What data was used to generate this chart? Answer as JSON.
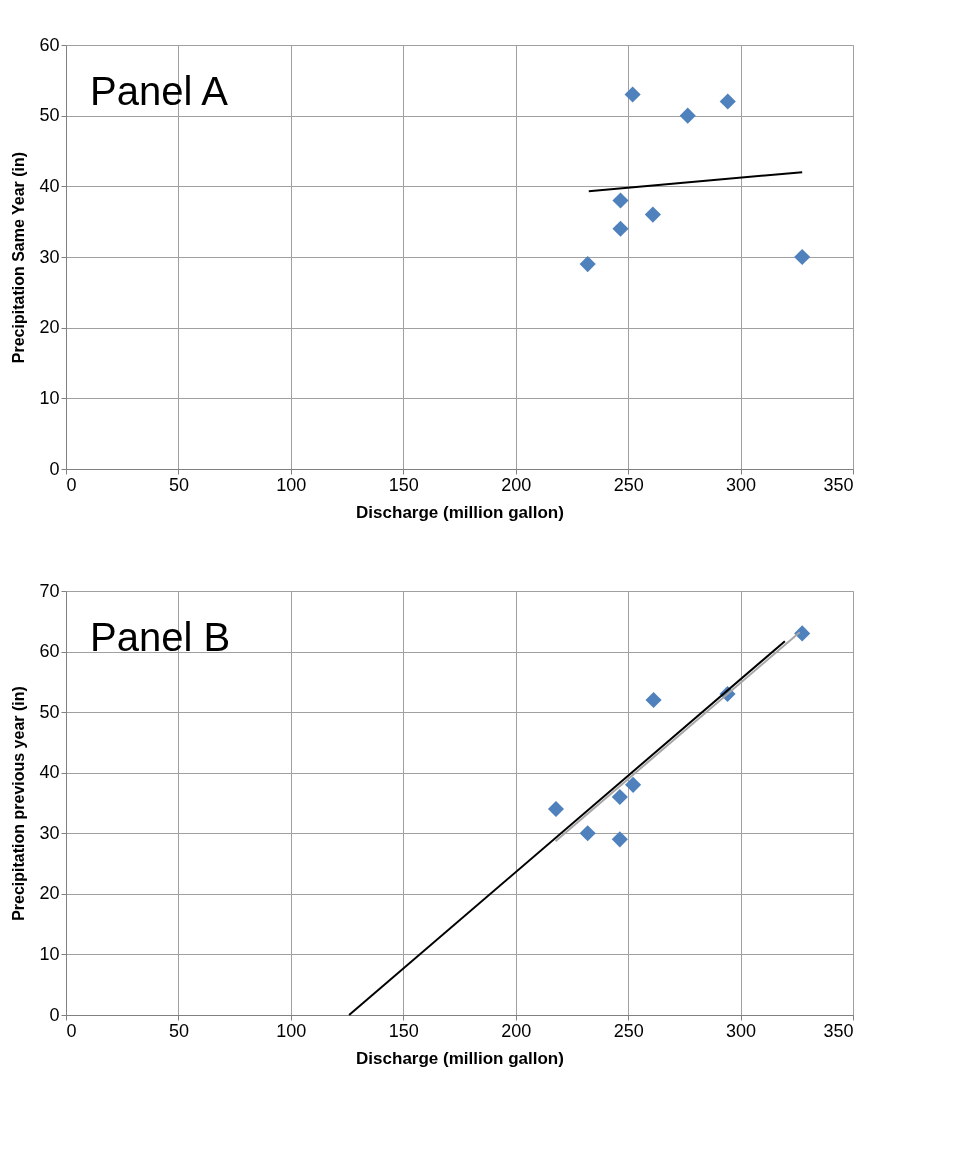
{
  "chart_data": [
    {
      "type": "scatter",
      "annotations": [
        "Panel A"
      ],
      "xlabel": "Discharge (million gallon)",
      "ylabel": "Precipitation Same Year (in)",
      "xlim": [
        0,
        350
      ],
      "xticks": [
        0,
        50,
        100,
        150,
        200,
        250,
        300,
        350
      ],
      "ylim": [
        0,
        60
      ],
      "yticks": [
        0,
        10,
        20,
        30,
        40,
        50,
        60
      ],
      "grid": true,
      "series": [
        {
          "marker": "diamond",
          "color": "#4f81bd",
          "x": [
            232,
            246.6,
            246.6,
            252,
            261,
            276.5,
            294.3,
            327.4
          ],
          "values": [
            29,
            34,
            38,
            53,
            36,
            50,
            52,
            30
          ]
        },
        {
          "type": "line",
          "color": "#000000",
          "x": [
            232.5,
            327.4
          ],
          "values": [
            39.3,
            42.0
          ]
        }
      ]
    },
    {
      "type": "scatter",
      "annotations": [
        "Panel B"
      ],
      "xlabel": "Discharge (million gallon)",
      "ylabel": "Precipitation previous year (in)",
      "xlim": [
        0,
        350
      ],
      "xticks": [
        0,
        50,
        100,
        150,
        200,
        250,
        300,
        350
      ],
      "ylim": [
        0,
        70
      ],
      "yticks": [
        0,
        10,
        20,
        30,
        40,
        50,
        60,
        70
      ],
      "grid": true,
      "series": [
        {
          "marker": "diamond",
          "color": "#4f81bd",
          "x": [
            217.9,
            232,
            246.3,
            246.3,
            252.2,
            261.3,
            294.2,
            327.4
          ],
          "values": [
            34,
            30,
            29,
            36,
            38,
            52,
            53,
            63
          ]
        },
        {
          "type": "line",
          "color": "#000000",
          "x": [
            125.9,
            319.7
          ],
          "values": [
            0,
            61.7
          ]
        },
        {
          "type": "line",
          "color": "#a6a6a6",
          "x": [
            217.7,
            326.3
          ],
          "values": [
            28.7,
            63.2
          ]
        }
      ]
    }
  ]
}
